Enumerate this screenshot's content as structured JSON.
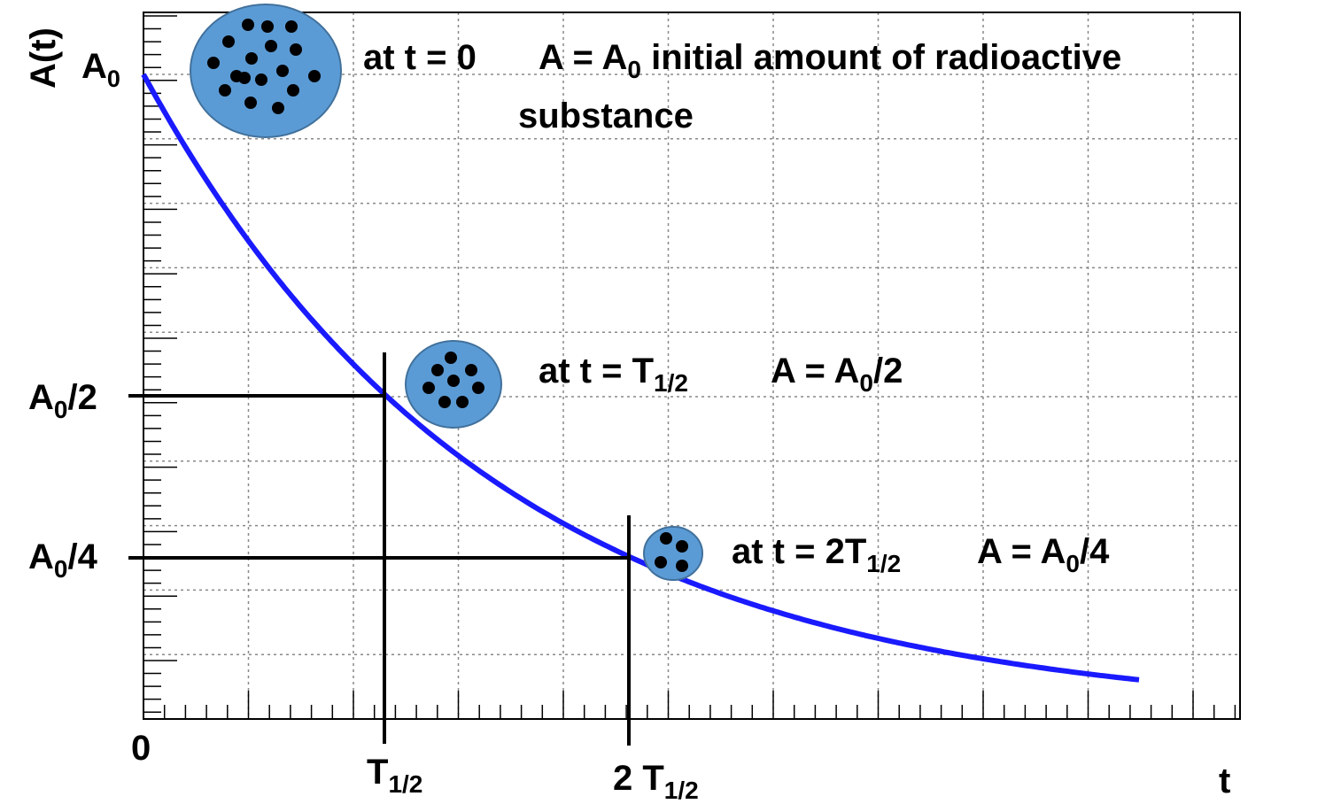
{
  "axes": {
    "y_title": "A(t)",
    "x_title": "t",
    "origin": "0",
    "y_labels": [
      [
        "A",
        "0"
      ],
      [
        "A",
        "0",
        "/2"
      ],
      [
        "A",
        "0",
        "/4"
      ]
    ],
    "x_labels": [
      [
        "T",
        "1/2"
      ],
      [
        "2 T",
        "1/2"
      ]
    ]
  },
  "annotations": [
    {
      "when": [
        "at t = 0"
      ],
      "amount": [
        "A = A",
        "0",
        " initial amount of radioactive"
      ],
      "amount_line2": "substance"
    },
    {
      "when": [
        "at t = T",
        "1/2"
      ],
      "amount": [
        "A = A",
        "0",
        "/2"
      ]
    },
    {
      "when": [
        "at t = 2T",
        "1/2"
      ],
      "amount": [
        "A = A",
        "0",
        "/4"
      ]
    }
  ]
}
